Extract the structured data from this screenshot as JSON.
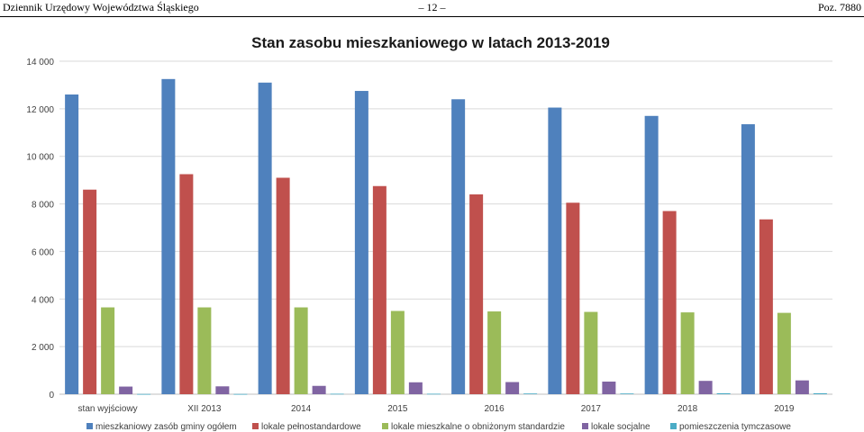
{
  "header": {
    "left": "Dziennik Urzędowy Województwa Śląskiego",
    "center": "– 12 –",
    "right": "Poz. 7880"
  },
  "chart_data": {
    "type": "bar",
    "title": "Stan zasobu mieszkaniowego w latach 2013-2019",
    "xlabel": "",
    "ylabel": "",
    "ylim": [
      0,
      14000
    ],
    "ytick_labels": [
      "0",
      "2 000",
      "4 000",
      "6 000",
      "8 000",
      "10 000",
      "12 000",
      "14 000"
    ],
    "grid": true,
    "legend_position": "bottom",
    "categories": [
      "stan wyjściowy",
      "XII 2013",
      "2014",
      "2015",
      "2016",
      "2017",
      "2018",
      "2019"
    ],
    "series": [
      {
        "name": "mieszkaniowy zasób gminy ogółem",
        "color": "#4F81BD",
        "values": [
          12600,
          13250,
          13100,
          12750,
          12400,
          12050,
          11700,
          11350
        ]
      },
      {
        "name": "lokale pełnostandardowe",
        "color": "#C0504D",
        "values": [
          8600,
          9250,
          9100,
          8750,
          8400,
          8050,
          7700,
          7350
        ]
      },
      {
        "name": "lokale mieszkalne o obniżonym standardzie",
        "color": "#9BBB59",
        "values": [
          3650,
          3650,
          3650,
          3500,
          3480,
          3460,
          3440,
          3420
        ]
      },
      {
        "name": "lokale socjalne",
        "color": "#8064A2",
        "values": [
          320,
          330,
          350,
          500,
          510,
          530,
          560,
          580
        ]
      },
      {
        "name": "pomieszczenia tymczasowe",
        "color": "#4BACC6",
        "values": [
          10,
          10,
          20,
          20,
          30,
          30,
          40,
          40
        ]
      }
    ]
  }
}
